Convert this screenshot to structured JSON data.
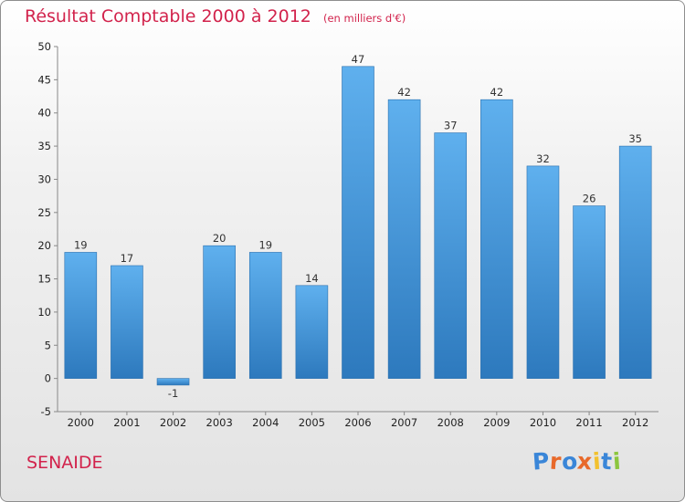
{
  "header": {
    "title": "Résultat Comptable 2000 à 2012",
    "subtitle": "(en milliers d'€)"
  },
  "commune": "SENAIDE",
  "logo": {
    "text": "Proxiti",
    "letters": [
      "P",
      "r",
      "o",
      "x",
      "i",
      "t",
      "i"
    ],
    "colors": [
      "#3a86d8",
      "#e8692a",
      "#3a86d8",
      "#e8692a",
      "#f2c12e",
      "#3a86d8",
      "#8cc63e"
    ]
  },
  "chart_data": {
    "type": "bar",
    "title": "Résultat Comptable 2000 à 2012",
    "subtitle": "(en milliers d'€)",
    "categories": [
      "2000",
      "2001",
      "2002",
      "2003",
      "2004",
      "2005",
      "2006",
      "2007",
      "2008",
      "2009",
      "2010",
      "2011",
      "2012"
    ],
    "values": [
      19,
      17,
      -1,
      20,
      19,
      14,
      47,
      42,
      37,
      42,
      32,
      26,
      35
    ],
    "data_labels": [
      "19",
      "17",
      "-1",
      "20",
      "19",
      "14",
      "47",
      "42",
      "37",
      "42",
      "32",
      "26",
      "35"
    ],
    "xlabel": "",
    "ylabel": "",
    "ylim": [
      -5,
      50
    ],
    "yticks": [
      -5,
      0,
      5,
      10,
      15,
      20,
      25,
      30,
      35,
      40,
      45,
      50
    ],
    "ytick_labels": [
      "-5",
      "0",
      "5",
      "10",
      "15",
      "20",
      "25",
      "30",
      "35",
      "40",
      "45",
      "50"
    ],
    "grid": false,
    "bar_color": "#4b9be0"
  }
}
